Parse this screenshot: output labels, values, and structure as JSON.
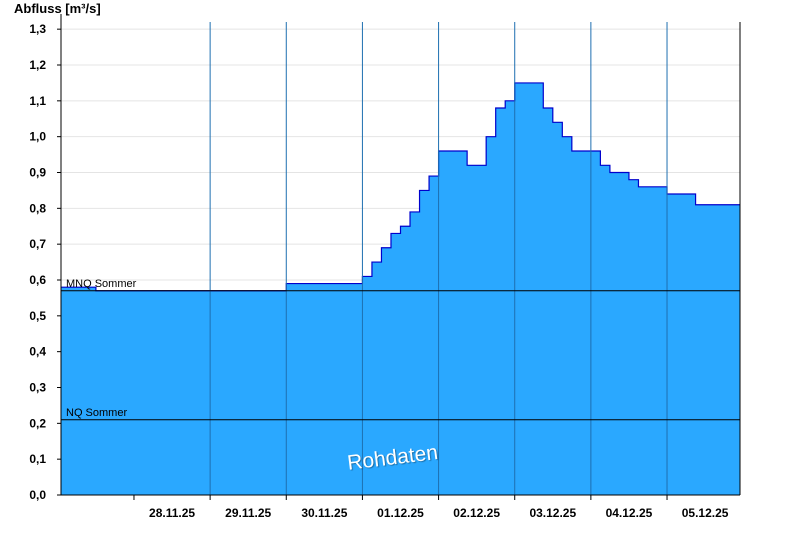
{
  "chart_data": {
    "type": "area",
    "ylabel": "Abfluss [m³/s]",
    "ylim": [
      0,
      1.32
    ],
    "yticks": [
      "0,0",
      "0,1",
      "0,2",
      "0,3",
      "0,4",
      "0,5",
      "0,6",
      "0,7",
      "0,8",
      "0,9",
      "1,0",
      "1,1",
      "1,2",
      "1,3"
    ],
    "xlim": [
      "2025-11-27T01:00",
      "2025-12-05T23:00"
    ],
    "xticks": [
      "28.11.25",
      "29.11.25",
      "30.11.25",
      "01.12.25",
      "02.12.25",
      "03.12.25",
      "04.12.25",
      "05.12.25"
    ],
    "grid": true,
    "fill_color": "#2aa8ff",
    "line_color": "#0000cc",
    "thresholds": [
      {
        "label": "MNQ Sommer",
        "value": 0.57
      },
      {
        "label": "NQ Sommer",
        "value": 0.21
      }
    ],
    "x": [
      "2025-11-27T01:00",
      "2025-11-27T12:00",
      "2025-11-28T00:00",
      "2025-11-28T12:00",
      "2025-11-29T00:00",
      "2025-11-29T12:00",
      "2025-11-30T00:00",
      "2025-11-30T12:00",
      "2025-11-30T15:00",
      "2025-11-30T18:00",
      "2025-11-30T21:00",
      "2025-12-01T00:00",
      "2025-12-01T03:00",
      "2025-12-01T06:00",
      "2025-12-01T09:00",
      "2025-12-01T12:00",
      "2025-12-01T15:00",
      "2025-12-01T18:00",
      "2025-12-01T21:00",
      "2025-12-02T00:00",
      "2025-12-02T03:00",
      "2025-12-02T06:00",
      "2025-12-02T09:00",
      "2025-12-02T12:00",
      "2025-12-02T15:00",
      "2025-12-02T18:00",
      "2025-12-02T21:00",
      "2025-12-03T00:00",
      "2025-12-03T03:00",
      "2025-12-03T06:00",
      "2025-12-03T09:00",
      "2025-12-03T12:00",
      "2025-12-03T15:00",
      "2025-12-03T18:00",
      "2025-12-03T21:00",
      "2025-12-04T00:00",
      "2025-12-04T03:00",
      "2025-12-04T06:00",
      "2025-12-04T09:00",
      "2025-12-04T12:00",
      "2025-12-04T15:00",
      "2025-12-04T18:00",
      "2025-12-04T21:00",
      "2025-12-05T00:00",
      "2025-12-05T03:00",
      "2025-12-05T06:00",
      "2025-12-05T09:00",
      "2025-12-05T12:00",
      "2025-12-05T15:00",
      "2025-12-05T18:00",
      "2025-12-05T23:00"
    ],
    "y": [
      0.58,
      0.57,
      0.57,
      0.57,
      0.57,
      0.57,
      0.59,
      0.59,
      0.59,
      0.59,
      0.59,
      0.61,
      0.65,
      0.69,
      0.73,
      0.75,
      0.79,
      0.85,
      0.89,
      0.96,
      0.96,
      0.96,
      0.92,
      0.92,
      1.0,
      1.08,
      1.1,
      1.15,
      1.15,
      1.15,
      1.08,
      1.04,
      1.0,
      0.96,
      0.96,
      0.96,
      0.92,
      0.9,
      0.9,
      0.88,
      0.86,
      0.86,
      0.86,
      0.84,
      0.84,
      0.84,
      0.81,
      0.81,
      0.81,
      0.81,
      0.81
    ]
  },
  "watermark": "Rohdaten"
}
